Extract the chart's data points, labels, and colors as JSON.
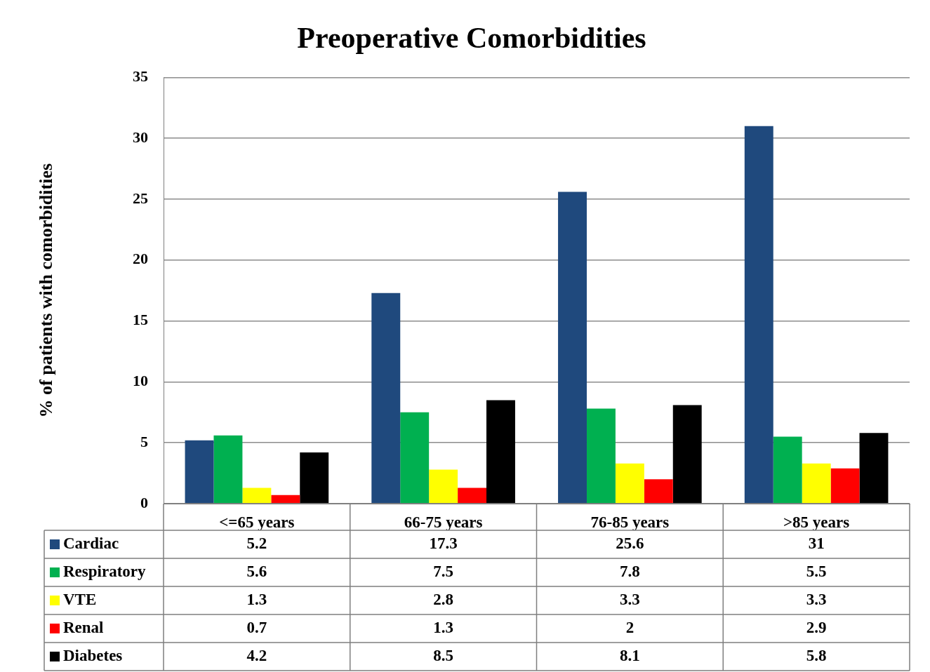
{
  "chart_data": {
    "type": "bar",
    "title": "Preoperative Comorbidities",
    "ylabel": "% of patients with comorbidities",
    "categories": [
      "<=65 years",
      "66-75 years",
      "76-85 years",
      ">85 years"
    ],
    "series": [
      {
        "name": "Cardiac",
        "color": "#1f497d",
        "values": [
          5.2,
          17.3,
          25.6,
          31
        ]
      },
      {
        "name": "Respiratory",
        "color": "#00b050",
        "values": [
          5.6,
          7.5,
          7.8,
          5.5
        ]
      },
      {
        "name": "VTE",
        "color": "#ffff00",
        "values": [
          1.3,
          2.8,
          3.3,
          3.3
        ]
      },
      {
        "name": "Renal",
        "color": "#ff0000",
        "values": [
          0.7,
          1.3,
          2,
          2.9
        ]
      },
      {
        "name": "Diabetes",
        "color": "#000000",
        "values": [
          4.2,
          8.5,
          8.1,
          5.8
        ]
      }
    ],
    "ylim": [
      0,
      35
    ],
    "yticks": [
      0,
      5,
      10,
      15,
      20,
      25,
      30,
      35
    ],
    "grid": "y",
    "legend": "bottom",
    "data_labels": true
  }
}
